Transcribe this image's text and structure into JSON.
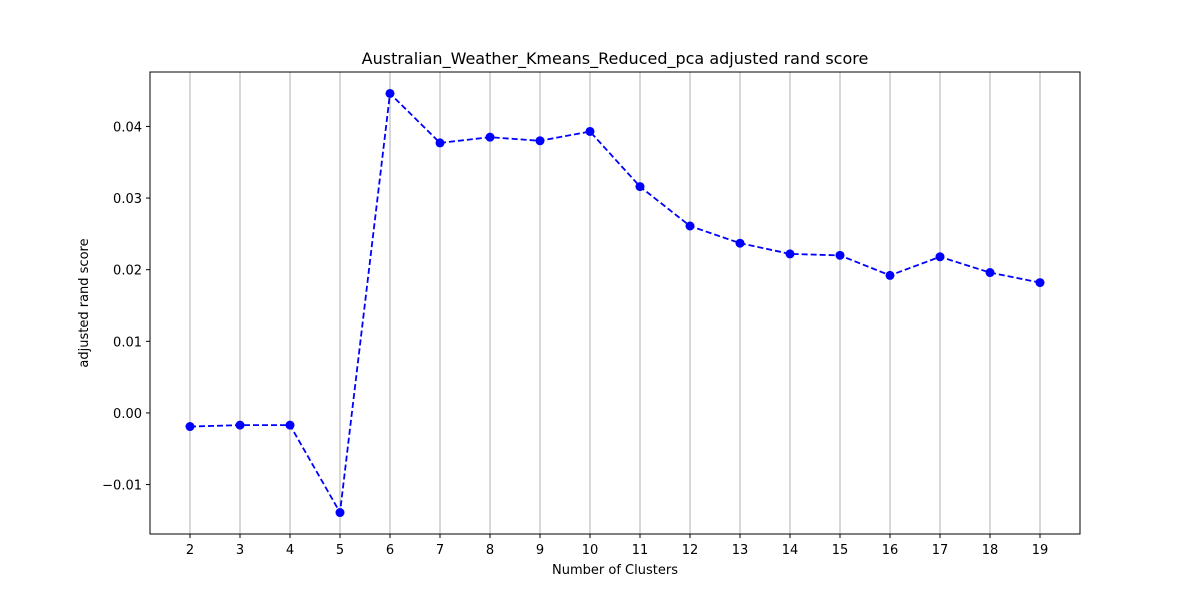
{
  "chart_data": {
    "type": "line",
    "title": "Australian_Weather_Kmeans_Reduced_pca adjusted rand score",
    "xlabel": "Number of Clusters",
    "ylabel": "adjusted rand score",
    "x": [
      2,
      3,
      4,
      5,
      6,
      7,
      8,
      9,
      10,
      11,
      12,
      13,
      14,
      15,
      16,
      17,
      18,
      19
    ],
    "series": [
      {
        "values": [
          -0.0019,
          -0.0017,
          -0.0017,
          -0.0139,
          0.0446,
          0.0377,
          0.0385,
          0.038,
          0.0393,
          0.0316,
          0.0261,
          0.0237,
          0.0222,
          0.022,
          0.0192,
          0.0218,
          0.0196,
          0.0182
        ],
        "color": "#0000ff",
        "line_style": "dashed",
        "marker": "circle"
      }
    ],
    "xlim": [
      1.2,
      19.8
    ],
    "ylim": [
      -0.0169,
      0.0476
    ],
    "y_ticks": [
      -0.01,
      0.0,
      0.01,
      0.02,
      0.03,
      0.04
    ],
    "y_tick_labels": [
      "−0.01",
      "0.00",
      "0.01",
      "0.02",
      "0.03",
      "0.04"
    ],
    "x_tick_labels": [
      "2",
      "3",
      "4",
      "5",
      "6",
      "7",
      "8",
      "9",
      "10",
      "11",
      "12",
      "13",
      "14",
      "15",
      "16",
      "17",
      "18",
      "19"
    ],
    "grid": "vertical",
    "grid_color": "#b0b0b0",
    "legend": "none"
  }
}
